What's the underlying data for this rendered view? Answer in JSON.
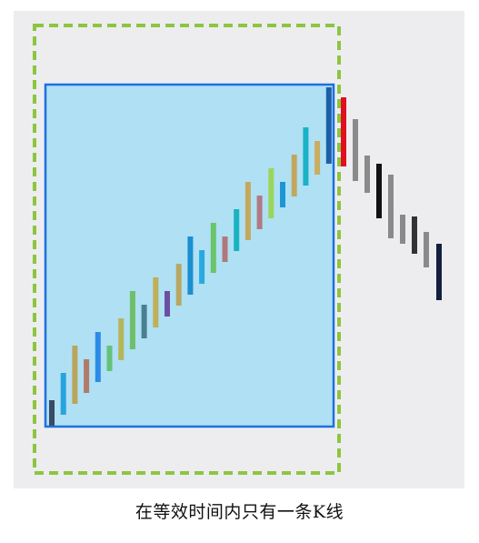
{
  "caption": "在等效时间内只有一条K线",
  "colors": {
    "background_panel": "#ededf0",
    "dashed_frame": "#8cc63f",
    "window_border": "#1f6fe0",
    "window_fill": "#afe0f3",
    "inside_palette": [
      "#3b4a66",
      "#29a3dd",
      "#b9a55b",
      "#b07a6a",
      "#2b8be6",
      "#66c27a",
      "#b7b55a",
      "#6fbf6a",
      "#4a7f93",
      "#bfae5a",
      "#6a4fa3",
      "#b8a863",
      "#1b8fd0",
      "#2aa9e0",
      "#6bc46a",
      "#b0787a",
      "#17b3c0",
      "#c4a85c",
      "#b07a85",
      "#9ad65a",
      "#1e95d5",
      "#c3a65d",
      "#19b2c6",
      "#c9ad62",
      "#1e5ea6"
    ],
    "outside_bars": [
      "#e0101e",
      "#8a8a8a",
      "#8a8a8a",
      "#111111",
      "#8a8a8a",
      "#8a8a8a",
      "#333333",
      "#8a8a8a",
      "#141f3f"
    ]
  }
}
